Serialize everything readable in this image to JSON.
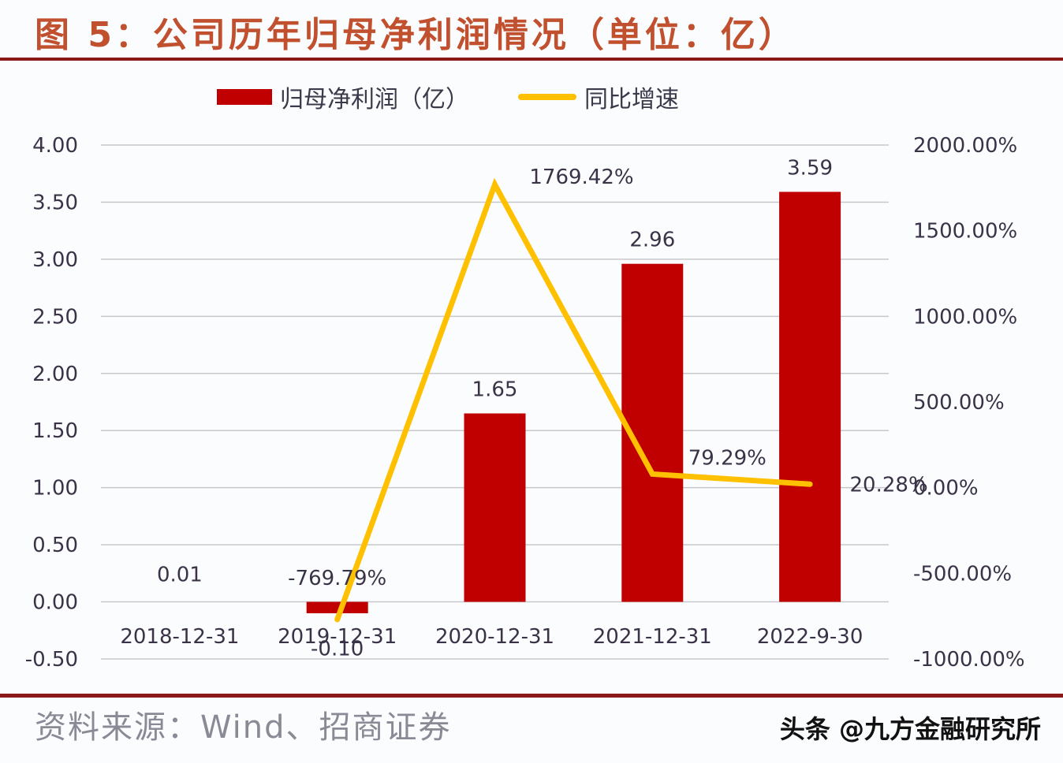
{
  "title": "图 5：公司历年归母净利润情况（单位：亿）",
  "legend": [
    {
      "label": "归母净利润（亿）",
      "type": "bar",
      "color": "#c00000"
    },
    {
      "label": "同比增速",
      "type": "line",
      "color": "#ffc000"
    }
  ],
  "source": "资料来源：Wind、招商证券",
  "watermark": "头条 @九方金融研究所",
  "chart_data": {
    "type": "bar",
    "title": "公司历年归母净利润情况（单位：亿）",
    "categories": [
      "2018-12-31",
      "2019-12-31",
      "2020-12-31",
      "2021-12-31",
      "2022-9-30"
    ],
    "series": [
      {
        "name": "归母净利润（亿）",
        "type": "bar",
        "axis": "left",
        "color": "#c00000",
        "values": [
          0.01,
          -0.1,
          1.65,
          2.96,
          3.59
        ],
        "labels": [
          "0.01",
          "-0.10",
          "1.65",
          "2.96",
          "3.59"
        ]
      },
      {
        "name": "同比增速",
        "type": "line",
        "axis": "right",
        "color": "#ffc000",
        "values": [
          null,
          -769.79,
          1769.42,
          79.29,
          20.28
        ],
        "labels": [
          "",
          "-769.79%",
          "1769.42%",
          "79.29%",
          "20.28%"
        ]
      }
    ],
    "left_axis": {
      "ylim": [
        -0.5,
        4.0
      ],
      "ticks": [
        "4.00",
        "3.50",
        "3.00",
        "2.50",
        "2.00",
        "1.50",
        "1.00",
        "0.50",
        "0.00",
        "-0.50"
      ]
    },
    "right_axis": {
      "ylim": [
        -1000,
        2000
      ],
      "ticks": [
        "2000.00%",
        "1500.00%",
        "1000.00%",
        "500.00%",
        "0.00%",
        "-500.00%",
        "-1000.00%"
      ]
    },
    "grid": true,
    "legend_position": "top"
  }
}
